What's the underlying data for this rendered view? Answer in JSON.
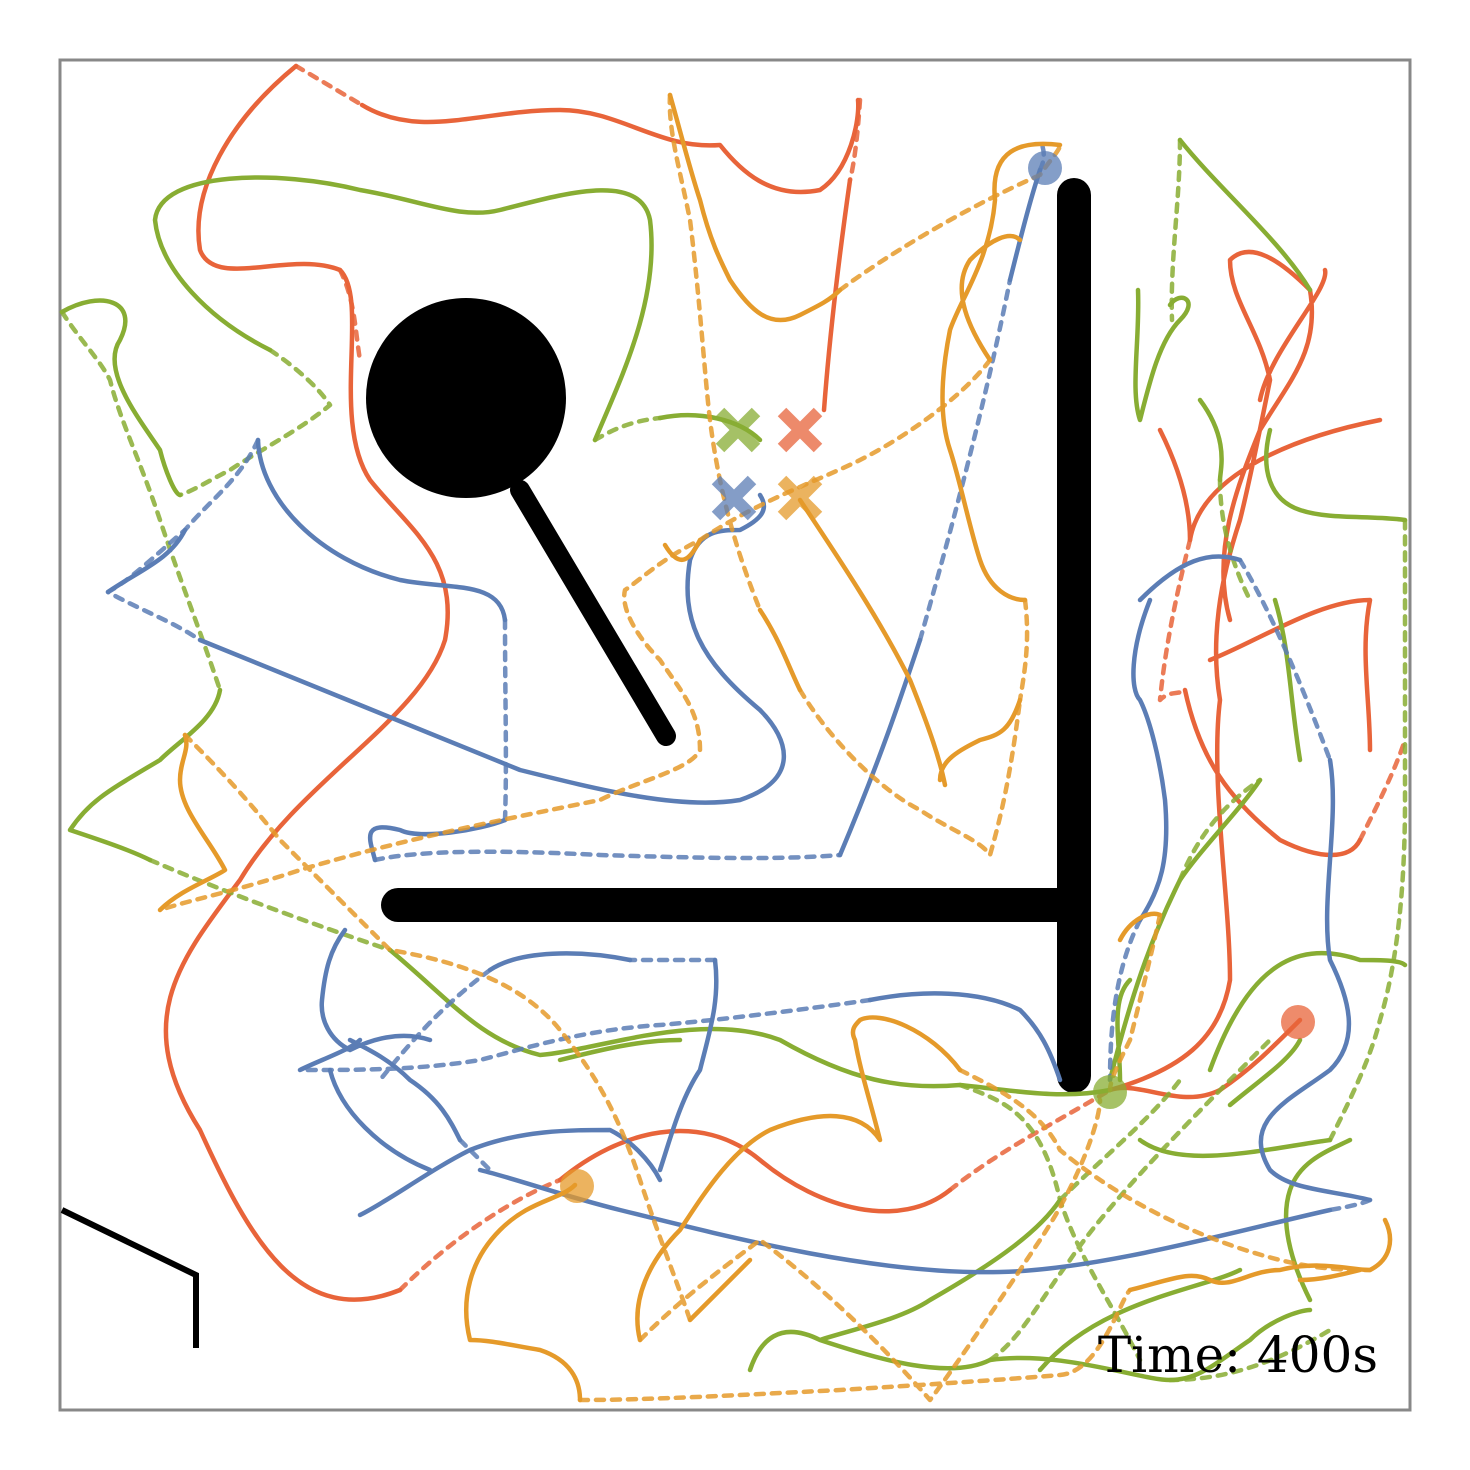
{
  "time_label": "Time:  400s",
  "colors": {
    "blue": "#5b7db5",
    "orange": "#e59a2a",
    "green": "#88ad33",
    "red": "#e8643a",
    "obstacle": "#000000",
    "frame": "#888888"
  },
  "agents": [
    {
      "id": "blue",
      "marker_start": "x-marker",
      "marker_end": "circle-marker"
    },
    {
      "id": "orange",
      "marker_start": "x-marker",
      "marker_end": "circle-marker"
    },
    {
      "id": "green",
      "marker_start": "x-marker",
      "marker_end": "circle-marker"
    },
    {
      "id": "red",
      "marker_start": "x-marker",
      "marker_end": "circle-marker"
    }
  ]
}
